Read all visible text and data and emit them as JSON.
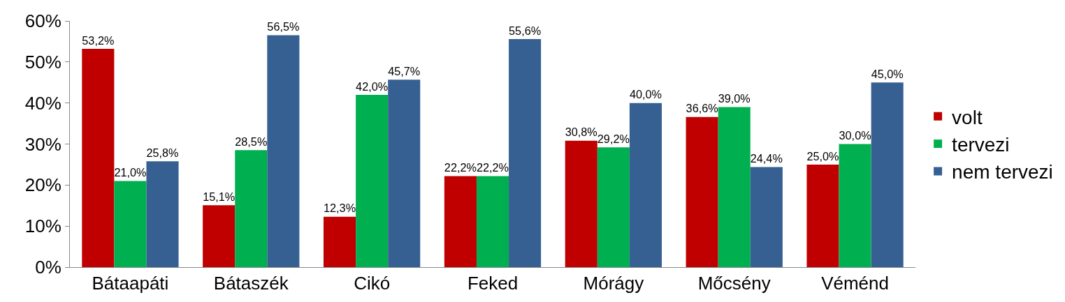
{
  "chart_data": {
    "type": "bar",
    "categories": [
      "Bátaapáti",
      "Bátaszék",
      "Cikó",
      "Feked",
      "Mórágy",
      "Mőcsény",
      "Véménd"
    ],
    "series": [
      {
        "name": "volt",
        "color": "#c00000",
        "values": [
          53.2,
          15.1,
          12.3,
          22.2,
          30.8,
          36.6,
          25.0
        ],
        "value_labels": [
          "53,2%",
          "15,1%",
          "12,3%",
          "22,2%",
          "30,8%",
          "36,6%",
          "25,0%"
        ]
      },
      {
        "name": "tervezi",
        "color": "#00b050",
        "values": [
          21.0,
          28.5,
          42.0,
          22.2,
          29.2,
          39.0,
          30.0
        ],
        "value_labels": [
          "21,0%",
          "28,5%",
          "42,0%",
          "22,2%",
          "29,2%",
          "39,0%",
          "30,0%"
        ]
      },
      {
        "name": "nem tervezi",
        "color": "#376092",
        "values": [
          25.8,
          56.5,
          45.7,
          55.6,
          40.0,
          24.4,
          45.0
        ],
        "value_labels": [
          "25,8%",
          "56,5%",
          "45,7%",
          "55,6%",
          "40,0%",
          "24,4%",
          "45,0%"
        ]
      }
    ],
    "ylim": [
      0,
      60
    ],
    "yticks": [
      {
        "value": 0,
        "label": "0%"
      },
      {
        "value": 10,
        "label": "10%"
      },
      {
        "value": 20,
        "label": "20%"
      },
      {
        "value": 30,
        "label": "30%"
      },
      {
        "value": 40,
        "label": "40%"
      },
      {
        "value": 50,
        "label": "50%"
      },
      {
        "value": 60,
        "label": "60%"
      }
    ],
    "grid": false,
    "legend": "right"
  }
}
